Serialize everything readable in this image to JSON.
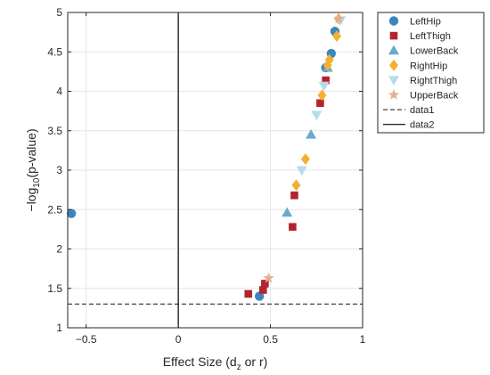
{
  "chart_data": {
    "type": "scatter",
    "title": "",
    "xlabel": {
      "main": "Effect Size (d",
      "sub": "z",
      "tail": " or r)"
    },
    "ylabel": {
      "main": "−log",
      "sub": "10",
      "tail": "(p-value)"
    },
    "xlim": [
      -0.6,
      1.0
    ],
    "ylim": [
      1.0,
      5.0
    ],
    "xticks": [
      -0.5,
      0,
      0.5,
      1
    ],
    "xtick_labels": [
      "−0.5",
      "0",
      "0.5",
      "1"
    ],
    "yticks": [
      1,
      1.5,
      2,
      2.5,
      3,
      3.5,
      4,
      4.5,
      5
    ],
    "ytick_labels": [
      "1",
      "1.5",
      "2",
      "2.5",
      "3",
      "3.5",
      "4",
      "4.5",
      "5"
    ],
    "grid": true,
    "legend_position": "outside-top-right",
    "series": [
      {
        "name": "LeftHip",
        "marker": "circle",
        "color": "#3c86be",
        "points": [
          [
            -0.58,
            2.45
          ],
          [
            0.44,
            1.4
          ],
          [
            0.8,
            4.3
          ],
          [
            0.83,
            4.48
          ],
          [
            0.85,
            4.76
          ]
        ]
      },
      {
        "name": "LeftThigh",
        "marker": "square",
        "color": "#b3242f",
        "points": [
          [
            0.38,
            1.43
          ],
          [
            0.46,
            1.48
          ],
          [
            0.47,
            1.56
          ],
          [
            0.62,
            2.28
          ],
          [
            0.63,
            2.68
          ],
          [
            0.77,
            3.85
          ],
          [
            0.8,
            4.14
          ]
        ]
      },
      {
        "name": "LowerBack",
        "marker": "triangle-up",
        "color": "#6aaace",
        "points": [
          [
            0.59,
            2.46
          ],
          [
            0.72,
            3.45
          ],
          [
            0.81,
            4.3
          ]
        ]
      },
      {
        "name": "RightHip",
        "marker": "diamond",
        "color": "#f3b12f",
        "points": [
          [
            0.64,
            2.81
          ],
          [
            0.69,
            3.14
          ],
          [
            0.78,
            3.95
          ],
          [
            0.81,
            4.33
          ],
          [
            0.82,
            4.4
          ],
          [
            0.86,
            4.7
          ],
          [
            0.87,
            4.92
          ]
        ]
      },
      {
        "name": "RightThigh",
        "marker": "triangle-down",
        "color": "#b7dbee",
        "points": [
          [
            0.67,
            3.0
          ],
          [
            0.75,
            3.7
          ],
          [
            0.79,
            4.07
          ],
          [
            0.88,
            4.9
          ]
        ]
      },
      {
        "name": "UpperBack",
        "marker": "star",
        "color": "#e6ae8e",
        "points": [
          [
            0.49,
            1.63
          ],
          [
            0.87,
            4.92
          ]
        ]
      }
    ],
    "lines": [
      {
        "name": "data1",
        "style": "dashed",
        "orientation": "horizontal",
        "value": 1.30103,
        "color": "#444444"
      },
      {
        "name": "data2",
        "style": "solid",
        "orientation": "vertical",
        "value": 0,
        "color": "#000000"
      }
    ]
  }
}
